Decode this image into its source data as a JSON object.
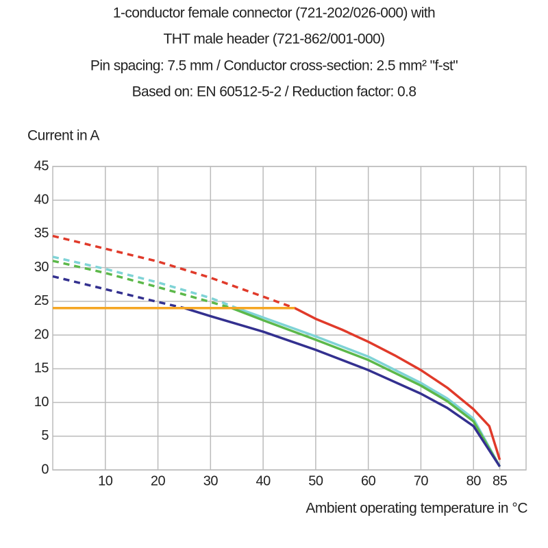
{
  "chart_data": {
    "type": "line",
    "title": [
      "1-conductor female connector (721-202/026-000) with",
      "THT male header (721-862/001-000)",
      "Pin spacing: 7.5 mm / Conductor cross-section: 2.5 mm² \"f-st\"",
      "Based on: EN 60512-5-2 / Reduction factor: 0.8"
    ],
    "y_label": "Current in A",
    "x_label": "Ambient operating temperature in °C",
    "xlim": [
      0,
      90
    ],
    "ylim": [
      0,
      45
    ],
    "xticks": [
      10,
      20,
      30,
      40,
      50,
      60,
      70,
      80,
      85
    ],
    "yticks": [
      0,
      5,
      10,
      15,
      20,
      25,
      30,
      35,
      40,
      45
    ],
    "grid": true,
    "series": [
      {
        "color": "#e03a2a",
        "dashed": true,
        "x": [
          0,
          10,
          20,
          30,
          40,
          46
        ],
        "values": [
          34.7,
          32.8,
          30.9,
          28.5,
          25.7,
          24
        ]
      },
      {
        "color": "#e03a2a",
        "dashed": false,
        "x": [
          46,
          50,
          55,
          60,
          65,
          70,
          75,
          80,
          83,
          85
        ],
        "values": [
          24,
          22.4,
          20.8,
          19,
          17,
          14.8,
          12.2,
          9,
          6.5,
          1.5
        ]
      },
      {
        "color": "#7fd3d6",
        "dashed": true,
        "x": [
          0,
          10,
          20,
          30,
          35
        ],
        "values": [
          31.6,
          29.8,
          27.8,
          25.5,
          24
        ]
      },
      {
        "color": "#7fd3d6",
        "dashed": false,
        "x": [
          35,
          40,
          50,
          60,
          70,
          75,
          80,
          85
        ],
        "values": [
          24,
          22.6,
          19.8,
          16.8,
          12.9,
          10.6,
          7.6,
          0.5
        ]
      },
      {
        "color": "#5cb84a",
        "dashed": true,
        "x": [
          0,
          10,
          20,
          30,
          34
        ],
        "values": [
          31,
          29.2,
          27.1,
          24.9,
          24
        ]
      },
      {
        "color": "#5cb84a",
        "dashed": false,
        "x": [
          34,
          40,
          50,
          60,
          70,
          75,
          80,
          85
        ],
        "values": [
          24,
          22.2,
          19.3,
          16.3,
          12.5,
          10.2,
          7.2,
          0.5
        ]
      },
      {
        "color": "#33308f",
        "dashed": true,
        "x": [
          0,
          10,
          20,
          25
        ],
        "values": [
          28.7,
          26.8,
          24.9,
          24
        ]
      },
      {
        "color": "#33308f",
        "dashed": false,
        "x": [
          25,
          30,
          40,
          50,
          60,
          70,
          75,
          80,
          85
        ],
        "values": [
          24,
          22.8,
          20.5,
          17.8,
          14.8,
          11.3,
          9.2,
          6.5,
          0.5
        ]
      },
      {
        "color": "#f5a623",
        "dashed": false,
        "x": [
          0,
          46
        ],
        "values": [
          24,
          24
        ]
      }
    ]
  }
}
